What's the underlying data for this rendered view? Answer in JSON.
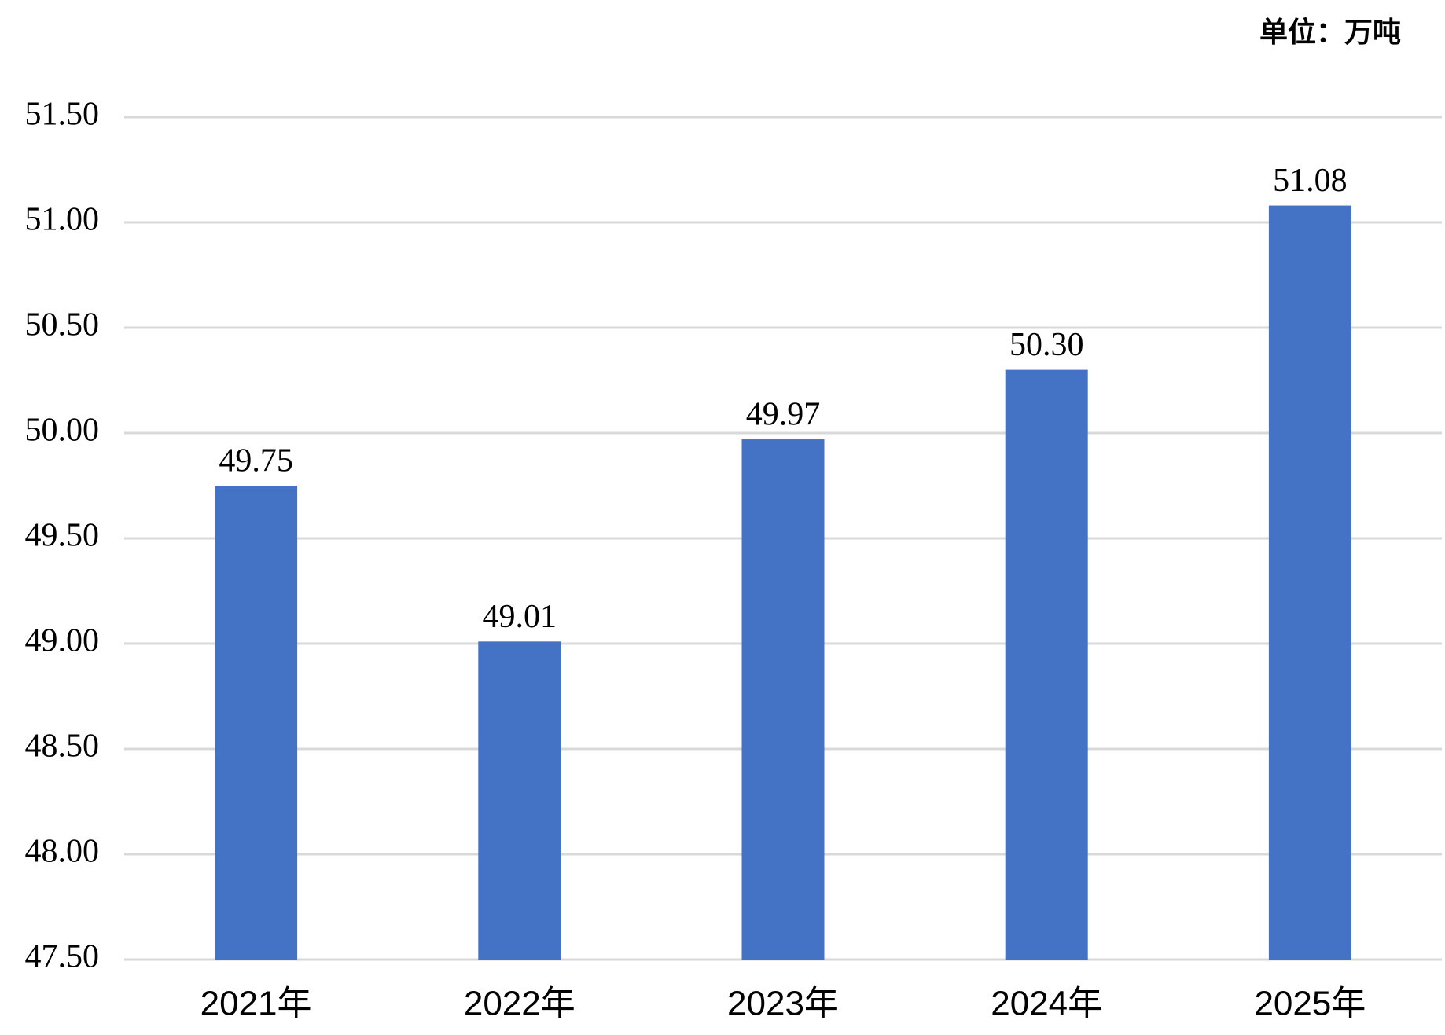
{
  "chart_data": {
    "type": "bar",
    "unit": "单位：万吨",
    "categories": [
      "2021年",
      "2022年",
      "2023年",
      "2024年",
      "2025年"
    ],
    "values": [
      49.75,
      49.01,
      49.97,
      50.3,
      51.08
    ],
    "value_labels": [
      "49.75",
      "49.01",
      "49.97",
      "50.30",
      "51.08"
    ],
    "color": "#4472c4",
    "ylim": [
      47.5,
      51.5
    ],
    "yticks": [
      {
        "value": 47.5,
        "label": "47.50"
      },
      {
        "value": 48,
        "label": "48.00"
      },
      {
        "value": 48.5,
        "label": "48.50"
      },
      {
        "value": 49,
        "label": "49.00"
      },
      {
        "value": 49.5,
        "label": "49.50"
      },
      {
        "value": 50,
        "label": "50.00"
      },
      {
        "value": 50.5,
        "label": "50.50"
      },
      {
        "value": 51,
        "label": "51.00"
      },
      {
        "value": 51.5,
        "label": "51.50"
      }
    ],
    "grid": true
  }
}
